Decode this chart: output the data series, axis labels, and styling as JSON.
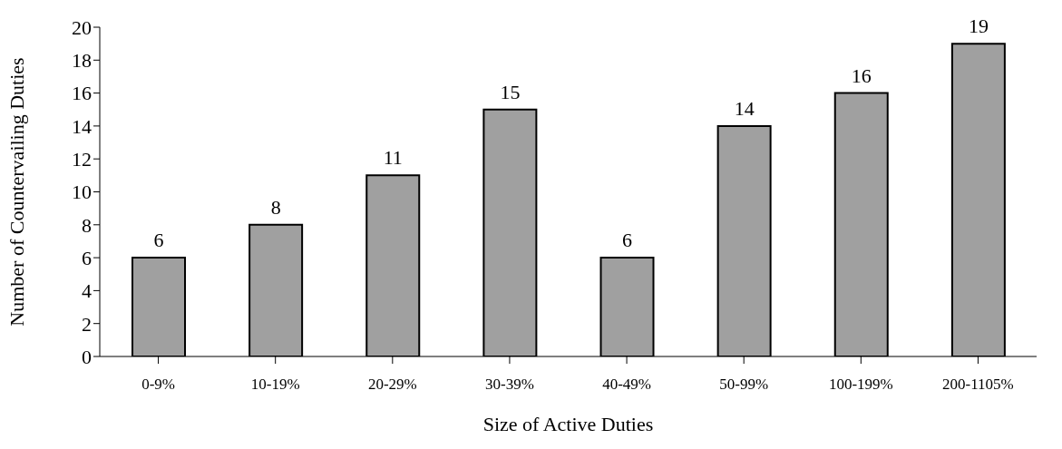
{
  "chart_data": {
    "type": "bar",
    "xlabel": "Size of Active Duties",
    "ylabel": "Number of Countervailing Duties",
    "categories": [
      "0-9%",
      "10-19%",
      "20-29%",
      "30-39%",
      "40-49%",
      "50-99%",
      "100-199%",
      "200-1105%"
    ],
    "values": [
      6,
      8,
      11,
      15,
      6,
      14,
      16,
      19
    ],
    "color": "#a0a0a0",
    "ylim": [
      0,
      20
    ],
    "yticks": [
      0,
      2,
      4,
      6,
      8,
      10,
      12,
      14,
      16,
      18,
      20
    ],
    "data_labels": true,
    "grid": false,
    "legend": false
  }
}
